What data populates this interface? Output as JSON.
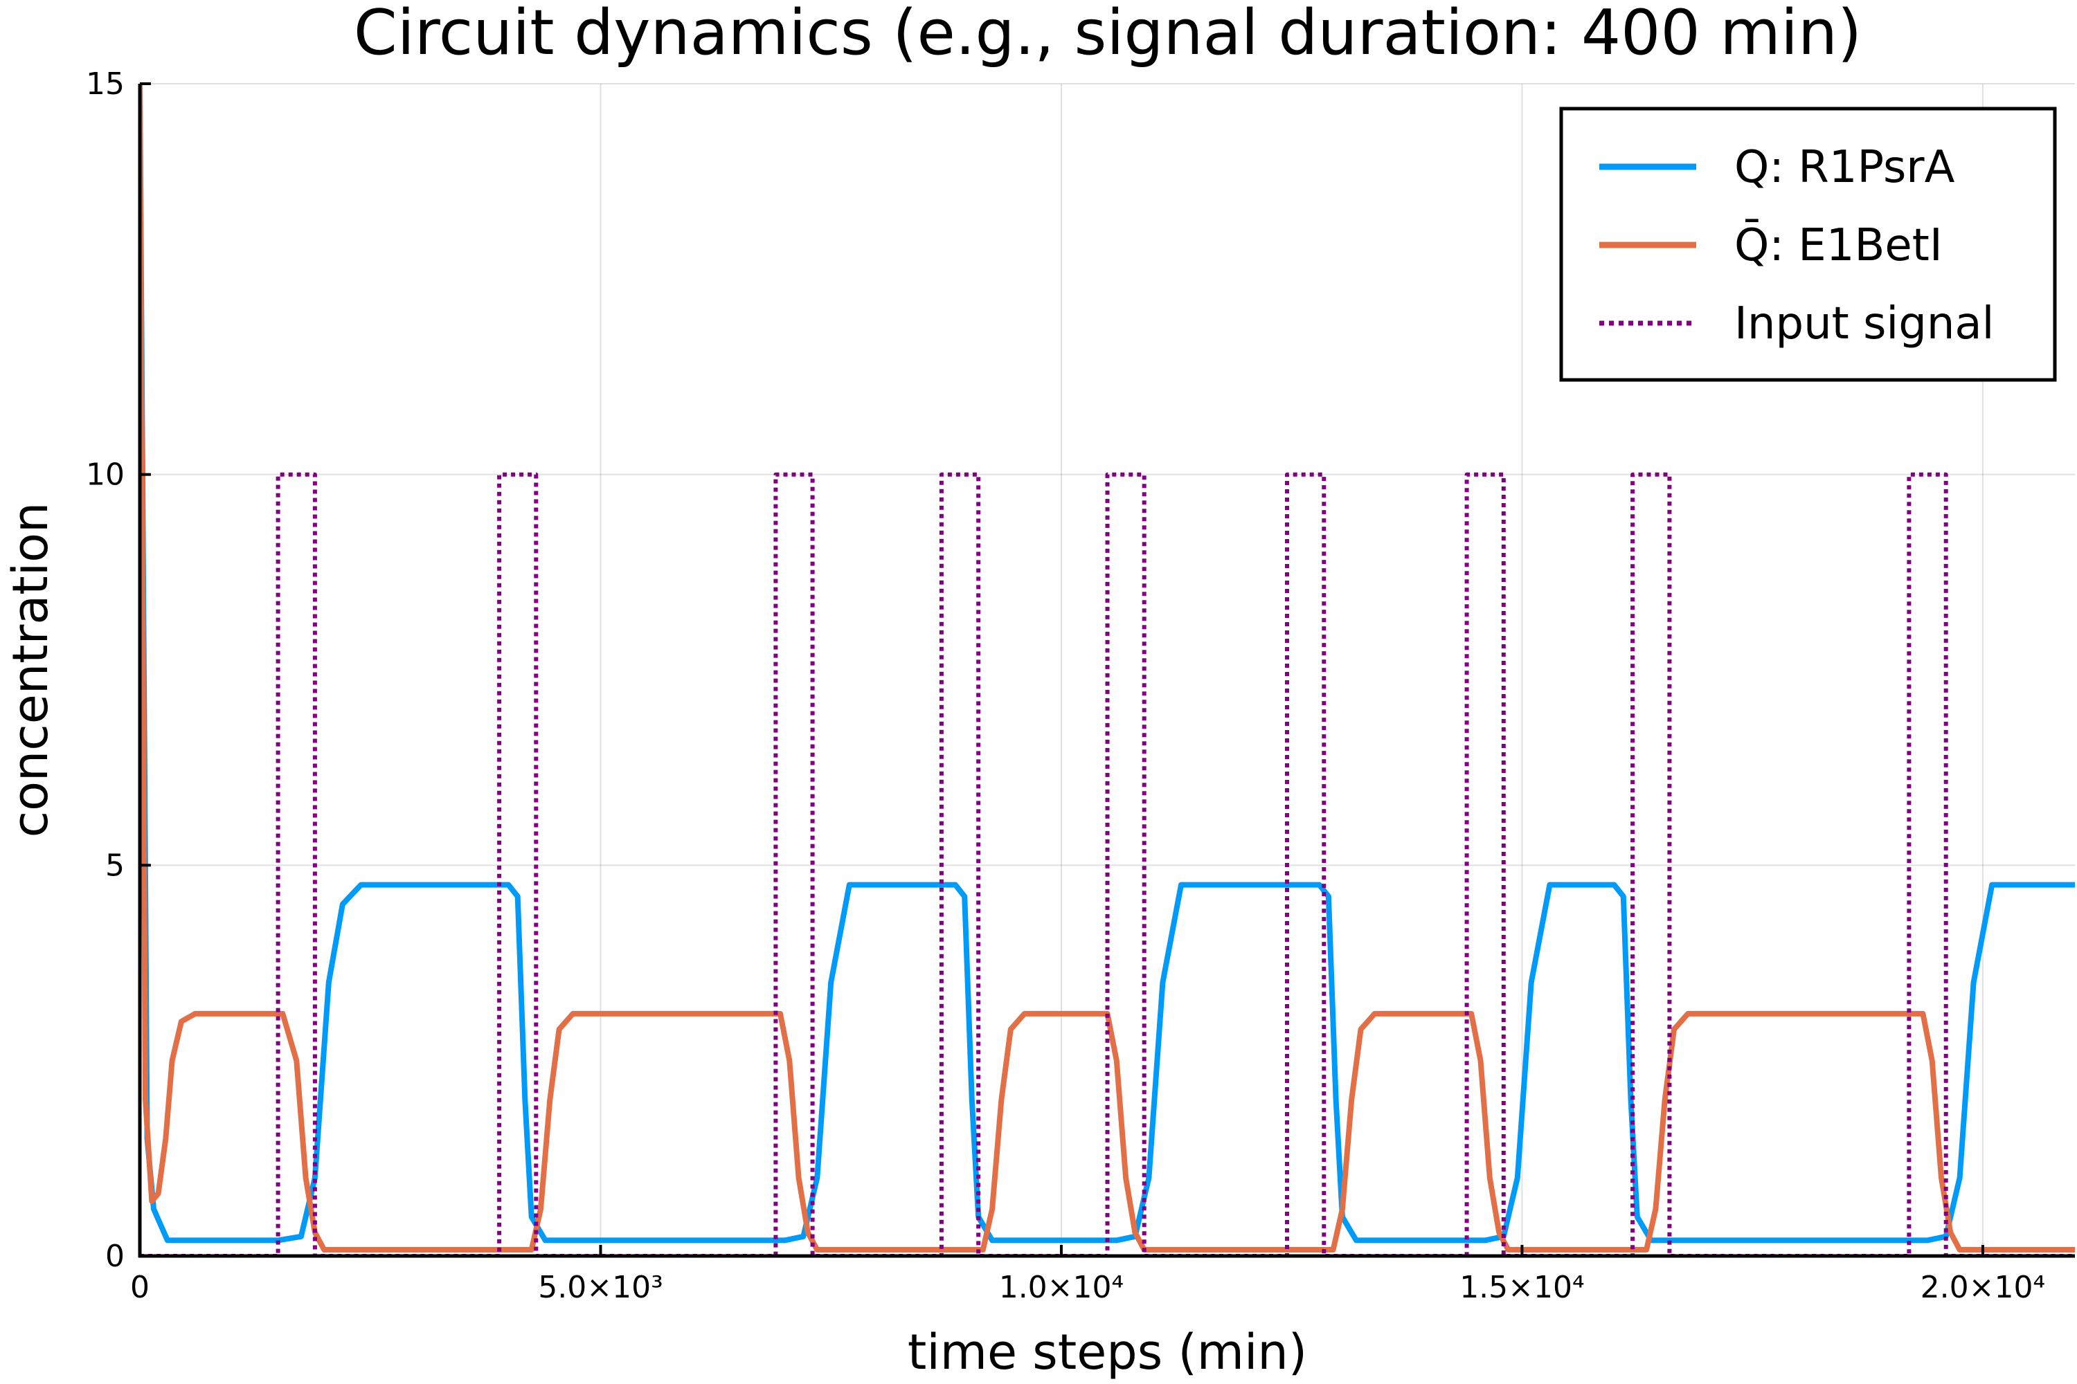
{
  "chart_data": {
    "type": "line",
    "title": "Circuit dynamics (e.g., signal duration: 400 min)",
    "xlabel": "time steps (min)",
    "ylabel": "concentration",
    "xlim": [
      0,
      21000
    ],
    "ylim": [
      0,
      15
    ],
    "grid": true,
    "legend_position": "top-right",
    "x_ticks": [
      {
        "value": 0,
        "label": "0"
      },
      {
        "value": 5000,
        "label": "5.0×10³"
      },
      {
        "value": 10000,
        "label": "1.0×10⁴"
      },
      {
        "value": 15000,
        "label": "1.5×10⁴"
      },
      {
        "value": 20000,
        "label": "2.0×10⁴"
      }
    ],
    "y_ticks": [
      {
        "value": 0,
        "label": "0"
      },
      {
        "value": 5,
        "label": "5"
      },
      {
        "value": 10,
        "label": "10"
      },
      {
        "value": 15,
        "label": "15"
      }
    ],
    "series": [
      {
        "name": "Q: R1PsrA",
        "color": "#009af9",
        "dash": "solid",
        "x": [
          0,
          80,
          150,
          300,
          1500,
          1750,
          1900,
          2050,
          2200,
          2400,
          4000,
          4100,
          4180,
          4250,
          4400,
          7000,
          7200,
          7350,
          7500,
          7700,
          8850,
          8950,
          9030,
          9100,
          9250,
          10600,
          10800,
          10950,
          11100,
          11300,
          12800,
          12900,
          12980,
          13050,
          13200,
          14600,
          14800,
          14950,
          15100,
          15300,
          16000,
          16100,
          16180,
          16250,
          16400,
          19400,
          19600,
          19750,
          19900,
          20100,
          21000
        ],
        "y": [
          15,
          1.5,
          0.6,
          0.2,
          0.2,
          0.25,
          1.0,
          3.5,
          4.5,
          4.75,
          4.75,
          4.6,
          2.0,
          0.5,
          0.2,
          0.2,
          0.25,
          1.0,
          3.5,
          4.75,
          4.75,
          4.6,
          2.0,
          0.5,
          0.2,
          0.2,
          0.25,
          1.0,
          3.5,
          4.75,
          4.75,
          4.6,
          2.0,
          0.5,
          0.2,
          0.2,
          0.25,
          1.0,
          3.5,
          4.75,
          4.75,
          4.6,
          2.0,
          0.5,
          0.2,
          0.2,
          0.25,
          1.0,
          3.5,
          4.75,
          4.75
        ]
      },
      {
        "name": "Q̄: E1BetI",
        "color": "#e26f46",
        "dash": "solid",
        "x": [
          0,
          60,
          130,
          200,
          280,
          350,
          450,
          600,
          1550,
          1700,
          1800,
          1900,
          2000,
          4250,
          4350,
          4450,
          4550,
          4700,
          6950,
          7050,
          7150,
          7250,
          7350,
          9150,
          9250,
          9350,
          9450,
          9600,
          10500,
          10600,
          10700,
          10800,
          10900,
          12950,
          13050,
          13150,
          13250,
          13400,
          14450,
          14550,
          14650,
          14750,
          14850,
          16350,
          16450,
          16550,
          16650,
          16800,
          19350,
          19450,
          19550,
          19650,
          19750,
          21000
        ],
        "y": [
          15,
          2.0,
          0.7,
          0.8,
          1.5,
          2.5,
          3.0,
          3.1,
          3.1,
          2.5,
          1.0,
          0.3,
          0.08,
          0.08,
          0.6,
          2.0,
          2.9,
          3.1,
          3.1,
          2.5,
          1.0,
          0.3,
          0.08,
          0.08,
          0.6,
          2.0,
          2.9,
          3.1,
          3.1,
          2.5,
          1.0,
          0.3,
          0.08,
          0.08,
          0.6,
          2.0,
          2.9,
          3.1,
          3.1,
          2.5,
          1.0,
          0.3,
          0.08,
          0.08,
          0.6,
          2.0,
          2.9,
          3.1,
          3.1,
          2.5,
          1.0,
          0.3,
          0.08,
          0.08
        ]
      },
      {
        "name": "Input signal",
        "color": "#800080",
        "dash": "dotted",
        "pulse_height": 10,
        "pulses": [
          [
            1500,
            1900
          ],
          [
            3900,
            4300
          ],
          [
            6900,
            7300
          ],
          [
            8700,
            9100
          ],
          [
            10500,
            10900
          ],
          [
            12450,
            12850
          ],
          [
            14400,
            14800
          ],
          [
            16200,
            16600
          ],
          [
            19200,
            19600
          ]
        ]
      }
    ]
  }
}
